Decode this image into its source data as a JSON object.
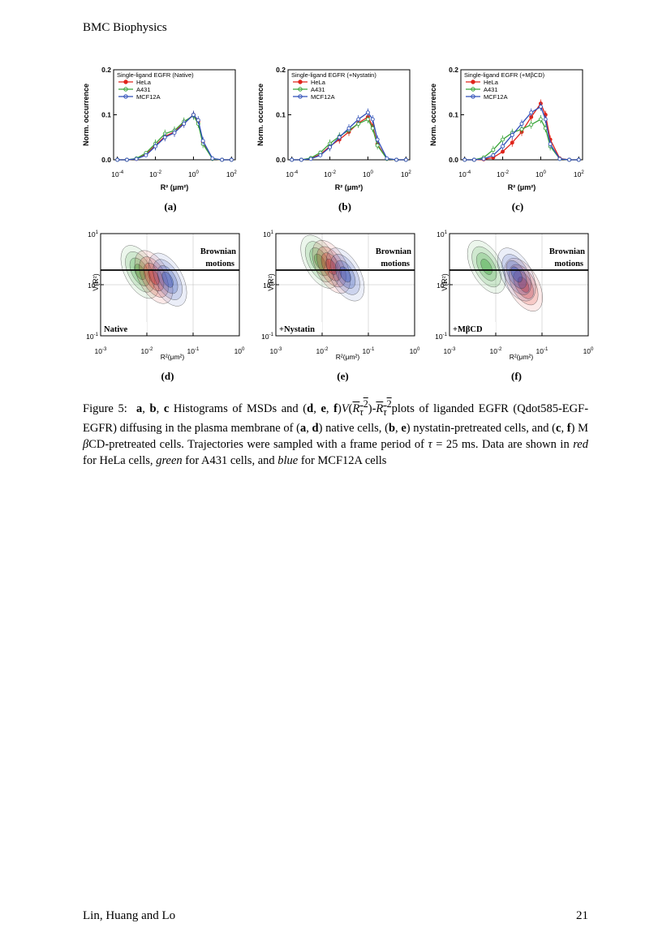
{
  "header": {
    "journal": "BMC Biophysics"
  },
  "footer": {
    "authors": "Lin, Huang and Lo",
    "page": "21"
  },
  "colors": {
    "hela": "#e0241b",
    "a431": "#3aa53a",
    "mcf12a": "#2f4fb8"
  },
  "histogram_panels": [
    {
      "letter": "(a)",
      "title": "Single-ligand EGFR (Native)"
    },
    {
      "letter": "(b)",
      "title": "Single-ligand EGFR (+Nystatin)"
    },
    {
      "letter": "(c)",
      "title": "Single-ligand EGFR (+MβCD)"
    }
  ],
  "histogram_axes": {
    "ylabel": "Norm. occurrence",
    "xlabel": "R² (μm²)",
    "yticks": [
      "0.0",
      "0.1",
      "0.2"
    ],
    "xtick_mantissa": "10",
    "xtick_exponents": [
      "-4",
      "-2",
      "0",
      "2"
    ]
  },
  "legend": [
    "HeLa",
    "A431",
    "MCF12A"
  ],
  "contour_panels": [
    {
      "letter": "(d)",
      "condition": "Native"
    },
    {
      "letter": "(e)",
      "condition": "+Nystatin"
    },
    {
      "letter": "(f)",
      "condition": "+MβCD"
    }
  ],
  "contour_axes": {
    "ylabel": "V(R²)",
    "xlabel": "R²(μm²)",
    "brownian_line1": "Brownian",
    "brownian_line2": "motions",
    "ytick_exponents": [
      "1",
      "0",
      "-1"
    ],
    "xtick_exponents": [
      "-3",
      "-2",
      "-1",
      "0"
    ]
  },
  "chart_data": [
    {
      "type": "line",
      "title": "Single-ligand EGFR (Native)",
      "xlabel": "R² (μm²)",
      "ylabel": "Norm. occurrence",
      "x_log10": [
        -4,
        -3.5,
        -3,
        -2.5,
        -2,
        -1.5,
        -1,
        -0.5,
        0,
        0.25,
        0.5,
        1,
        1.5,
        2
      ],
      "ylim": [
        0,
        0.2
      ],
      "series": [
        {
          "name": "HeLa",
          "values": [
            0,
            0,
            0.002,
            0.012,
            0.032,
            0.052,
            0.062,
            0.082,
            0.1,
            0.085,
            0.04,
            0.002,
            0,
            0
          ]
        },
        {
          "name": "A431",
          "values": [
            0,
            0,
            0.003,
            0.015,
            0.036,
            0.058,
            0.065,
            0.085,
            0.098,
            0.08,
            0.035,
            0.002,
            0,
            0
          ]
        },
        {
          "name": "MCF12A",
          "values": [
            0,
            0,
            0.002,
            0.01,
            0.03,
            0.05,
            0.06,
            0.08,
            0.1,
            0.088,
            0.042,
            0.003,
            0,
            0
          ]
        }
      ]
    },
    {
      "type": "line",
      "title": "Single-ligand EGFR (+Nystatin)",
      "xlabel": "R² (μm²)",
      "ylabel": "Norm. occurrence",
      "x_log10": [
        -4,
        -3.5,
        -3,
        -2.5,
        -2,
        -1.5,
        -1,
        -0.5,
        0,
        0.25,
        0.5,
        1,
        1.5,
        2
      ],
      "ylim": [
        0,
        0.2
      ],
      "series": [
        {
          "name": "HeLa",
          "values": [
            0,
            0,
            0.003,
            0.012,
            0.03,
            0.045,
            0.062,
            0.082,
            0.095,
            0.075,
            0.035,
            0.002,
            0,
            0
          ]
        },
        {
          "name": "A431",
          "values": [
            0,
            0,
            0.004,
            0.016,
            0.036,
            0.052,
            0.066,
            0.08,
            0.09,
            0.07,
            0.032,
            0.002,
            0,
            0
          ]
        },
        {
          "name": "MCF12A",
          "values": [
            0,
            0,
            0.002,
            0.01,
            0.028,
            0.05,
            0.07,
            0.09,
            0.105,
            0.09,
            0.045,
            0.003,
            0,
            0
          ]
        }
      ]
    },
    {
      "type": "line",
      "title": "Single-ligand EGFR (+MβCD)",
      "xlabel": "R² (μm²)",
      "ylabel": "Norm. occurrence",
      "x_log10": [
        -4,
        -3.5,
        -3,
        -2.5,
        -2,
        -1.5,
        -1,
        -0.5,
        0,
        0.25,
        0.5,
        1,
        1.5,
        2
      ],
      "ylim": [
        0,
        0.2
      ],
      "series": [
        {
          "name": "HeLa",
          "values": [
            0,
            0,
            0.001,
            0.005,
            0.018,
            0.038,
            0.062,
            0.095,
            0.125,
            0.1,
            0.045,
            0.003,
            0,
            0
          ]
        },
        {
          "name": "A431",
          "values": [
            0,
            0,
            0.005,
            0.022,
            0.045,
            0.06,
            0.068,
            0.078,
            0.09,
            0.07,
            0.03,
            0.002,
            0,
            0
          ]
        },
        {
          "name": "MCF12A",
          "values": [
            0,
            0,
            0.002,
            0.01,
            0.03,
            0.055,
            0.08,
            0.105,
            0.118,
            0.09,
            0.035,
            0.002,
            0,
            0
          ]
        }
      ]
    }
  ]
}
